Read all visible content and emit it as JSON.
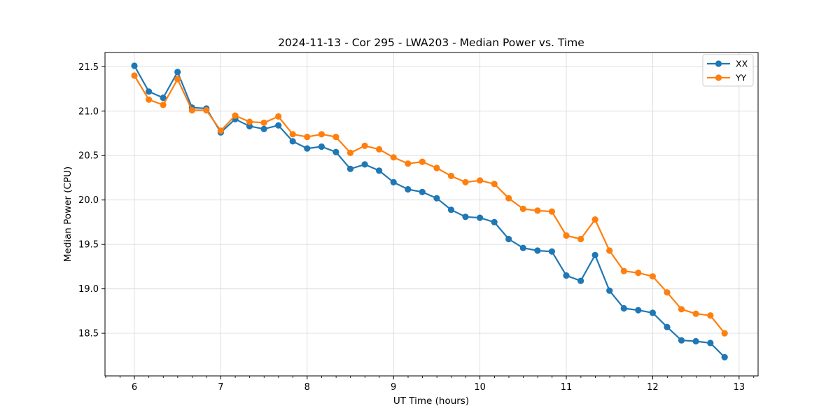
{
  "chart_data": {
    "type": "line",
    "title": "2024-11-13 - Cor 295 - LWA203 - Median Power vs. Time",
    "xlabel": "UT Time (hours)",
    "ylabel": "Median Power (CPU)",
    "legend_position": "upper right",
    "grid": true,
    "marker": "circle",
    "xlim": [
      5.66,
      13.22
    ],
    "ylim": [
      18.02,
      21.66
    ],
    "x_ticks": [
      6,
      7,
      8,
      9,
      10,
      11,
      12,
      13
    ],
    "x_minor_tick_step": 0.1667,
    "y_ticks": [
      18.5,
      19.0,
      19.5,
      20.0,
      20.5,
      21.0,
      21.5
    ],
    "x": [
      6,
      6.167,
      6.333,
      6.5,
      6.667,
      6.833,
      7,
      7.167,
      7.333,
      7.5,
      7.667,
      7.833,
      8,
      8.167,
      8.333,
      8.5,
      8.667,
      8.833,
      9,
      9.167,
      9.333,
      9.5,
      9.667,
      9.833,
      10,
      10.167,
      10.333,
      10.5,
      10.667,
      10.833,
      11,
      11.167,
      11.333,
      11.5,
      11.667,
      11.833,
      12,
      12.167,
      12.333,
      12.5,
      12.667,
      12.833
    ],
    "series": [
      {
        "name": "XX",
        "color": "#1f77b4",
        "values": [
          21.51,
          21.22,
          21.15,
          21.44,
          21.04,
          21.03,
          20.76,
          20.91,
          20.83,
          20.8,
          20.84,
          20.66,
          20.58,
          20.6,
          20.54,
          20.35,
          20.4,
          20.33,
          20.2,
          20.12,
          20.09,
          20.02,
          19.89,
          19.81,
          19.8,
          19.75,
          19.56,
          19.46,
          19.43,
          19.42,
          19.15,
          19.09,
          19.38,
          18.98,
          18.78,
          18.76,
          18.73,
          18.57,
          18.42,
          18.41,
          18.39,
          18.23
        ]
      },
      {
        "name": "YY",
        "color": "#ff7f0e",
        "values": [
          21.4,
          21.13,
          21.07,
          21.36,
          21.01,
          21.01,
          20.78,
          20.95,
          20.88,
          20.87,
          20.94,
          20.74,
          20.71,
          20.74,
          20.71,
          20.53,
          20.61,
          20.57,
          20.48,
          20.41,
          20.43,
          20.36,
          20.27,
          20.2,
          20.22,
          20.18,
          20.02,
          19.9,
          19.88,
          19.87,
          19.6,
          19.56,
          19.78,
          19.43,
          19.2,
          19.18,
          19.14,
          18.96,
          18.77,
          18.72,
          18.7,
          18.5
        ]
      }
    ],
    "style": {
      "grid_color": "#dcdcdc",
      "spine_color": "#000000",
      "legend_border_color": "#cccccc",
      "background_color": "#ffffff"
    }
  }
}
